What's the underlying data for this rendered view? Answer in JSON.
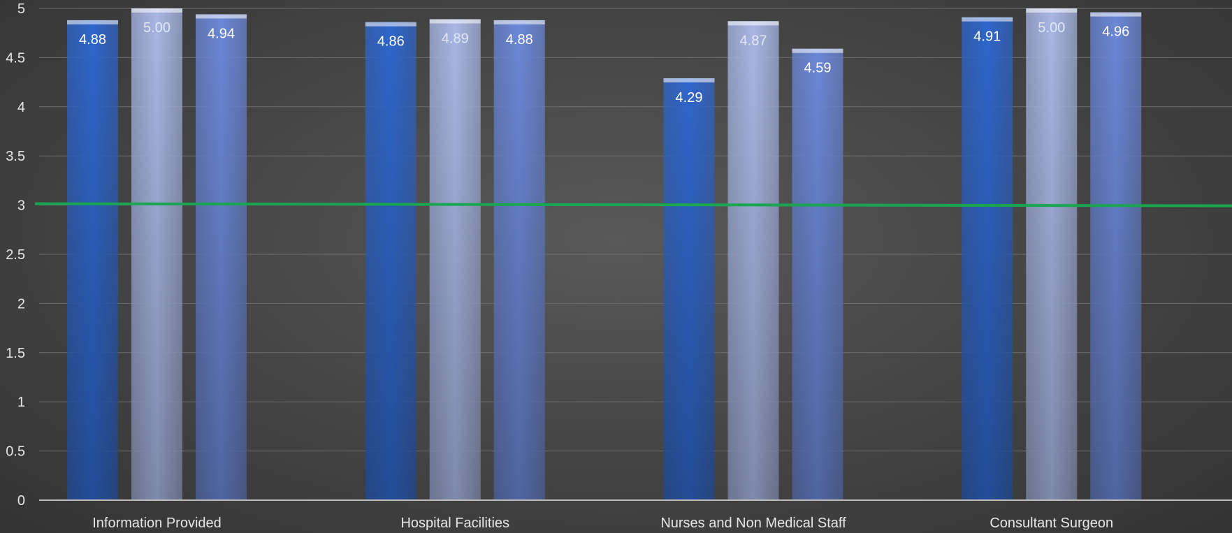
{
  "chart_data": {
    "type": "bar",
    "title": "",
    "xlabel": "",
    "ylabel": "",
    "ylim": [
      0,
      5
    ],
    "yticks": [
      "0",
      "0.5",
      "1",
      "1.5",
      "2",
      "2.5",
      "3",
      "3.5",
      "4",
      "4.5",
      "5"
    ],
    "grid": true,
    "legend": "none",
    "categories": [
      "Information Provided",
      "Hospital Facilities",
      "Nurses and Non Medical Staff",
      "Consultant Surgeon"
    ],
    "series": [
      {
        "values": [
          4.88,
          4.86,
          4.29,
          4.91
        ],
        "labels": [
          "4.88",
          "4.86",
          "4.29",
          "4.91"
        ],
        "color": "#2f66cc",
        "label_color": "#ffffff"
      },
      {
        "values": [
          5.0,
          4.89,
          4.87,
          5.0
        ],
        "labels": [
          "5.00",
          "4.89",
          "4.87",
          "5.00"
        ],
        "color": "#a9b7e6",
        "label_color": "#e2e8f5"
      },
      {
        "values": [
          4.94,
          4.88,
          4.59,
          4.96
        ],
        "labels": [
          "4.94",
          "4.88",
          "4.59",
          "4.96"
        ],
        "color": "#6b88d8",
        "label_color": "#ffffff"
      }
    ],
    "reference_line": {
      "value": 3,
      "color": "#1aa550"
    }
  }
}
